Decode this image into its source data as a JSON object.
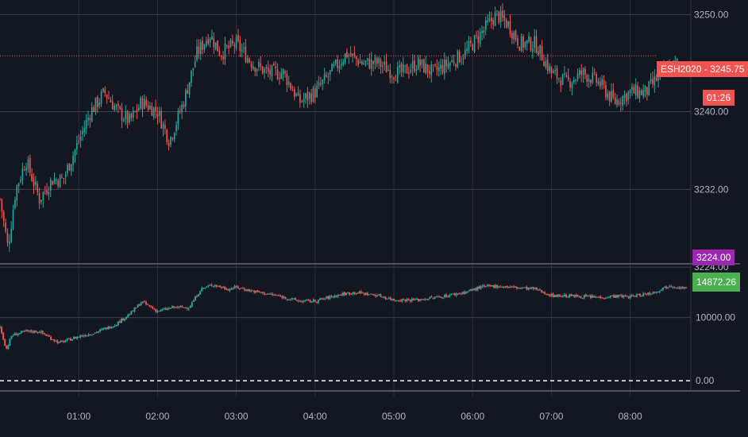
{
  "colors": {
    "background": "#131722",
    "grid": "#2a2e39",
    "gridStrong": "#3c4050",
    "axisText": "#b2b5be",
    "up": "#26a69a",
    "down": "#ef5350",
    "lastPrice": "#f05350",
    "upperTag": "#9c27b0",
    "lowerTag": "#4caf50"
  },
  "chart_data": [
    {
      "type": "candlestick",
      "symbol": "ESH2020",
      "last_price": 3245.75,
      "countdown": "01:26",
      "ylim": [
        3224.5,
        3251.5
      ],
      "y_ticks": [
        3224,
        3232,
        3240,
        3250
      ],
      "y_tick_labels": [
        "3224.00",
        "3232.00",
        "3240.00",
        "3250.00"
      ],
      "upper_tag": "3224.00",
      "x_range": [
        "00:00",
        "08:46"
      ],
      "x_tick_labels": [
        "01:00",
        "02:00",
        "03:00",
        "04:00",
        "05:00",
        "06:00",
        "07:00",
        "08:00"
      ],
      "anchors": [
        [
          0,
          3231
        ],
        [
          0.1,
          3226
        ],
        [
          0.2,
          3232
        ],
        [
          0.33,
          3235
        ],
        [
          0.5,
          3231
        ],
        [
          0.66,
          3233
        ],
        [
          0.8,
          3233
        ],
        [
          0.95,
          3236
        ],
        [
          1.15,
          3240
        ],
        [
          1.33,
          3242
        ],
        [
          1.5,
          3240
        ],
        [
          1.65,
          3239
        ],
        [
          1.8,
          3241
        ],
        [
          2.0,
          3240
        ],
        [
          2.15,
          3237
        ],
        [
          2.33,
          3241
        ],
        [
          2.5,
          3246
        ],
        [
          2.66,
          3248
        ],
        [
          2.8,
          3246
        ],
        [
          3.0,
          3247
        ],
        [
          3.2,
          3245
        ],
        [
          3.4,
          3244
        ],
        [
          3.6,
          3244
        ],
        [
          3.8,
          3241
        ],
        [
          4.0,
          3242
        ],
        [
          4.2,
          3244
        ],
        [
          4.4,
          3246
        ],
        [
          4.6,
          3245
        ],
        [
          4.8,
          3245
        ],
        [
          5.0,
          3244
        ],
        [
          5.1,
          3244
        ],
        [
          5.3,
          3245
        ],
        [
          5.5,
          3244
        ],
        [
          5.7,
          3245
        ],
        [
          5.9,
          3246
        ],
        [
          6.1,
          3248
        ],
        [
          6.3,
          3250
        ],
        [
          6.45,
          3249
        ],
        [
          6.6,
          3247
        ],
        [
          6.8,
          3247
        ],
        [
          7.0,
          3244
        ],
        [
          7.2,
          3243
        ],
        [
          7.4,
          3244
        ],
        [
          7.6,
          3243
        ],
        [
          7.8,
          3241
        ],
        [
          8.0,
          3242
        ],
        [
          8.2,
          3242
        ],
        [
          8.4,
          3244
        ],
        [
          8.6,
          3245
        ]
      ],
      "points_per_hour": 42
    },
    {
      "type": "line",
      "last_value": 14872.26,
      "last_value_label": "14872.26",
      "ylim": [
        -1100,
        18000
      ],
      "y_ticks": [
        0,
        10000
      ],
      "y_tick_labels": [
        "0.00",
        "10000.00"
      ],
      "zero_line": 0,
      "anchors": [
        [
          0,
          8500
        ],
        [
          0.08,
          5000
        ],
        [
          0.15,
          7200
        ],
        [
          0.33,
          7800
        ],
        [
          0.5,
          7800
        ],
        [
          0.75,
          6000
        ],
        [
          1.0,
          7000
        ],
        [
          1.2,
          7600
        ],
        [
          1.45,
          8800
        ],
        [
          1.65,
          10600
        ],
        [
          1.8,
          12500
        ],
        [
          2.0,
          11000
        ],
        [
          2.2,
          11600
        ],
        [
          2.4,
          11600
        ],
        [
          2.55,
          14500
        ],
        [
          2.7,
          15200
        ],
        [
          2.9,
          14500
        ],
        [
          3.0,
          14800
        ],
        [
          3.2,
          14200
        ],
        [
          3.5,
          13500
        ],
        [
          3.8,
          12600
        ],
        [
          4.0,
          12600
        ],
        [
          4.3,
          13600
        ],
        [
          4.5,
          14000
        ],
        [
          4.8,
          13500
        ],
        [
          5.0,
          12800
        ],
        [
          5.3,
          12800
        ],
        [
          5.6,
          13300
        ],
        [
          5.9,
          14000
        ],
        [
          6.1,
          14800
        ],
        [
          6.3,
          15000
        ],
        [
          6.5,
          14800
        ],
        [
          6.8,
          14500
        ],
        [
          7.0,
          13500
        ],
        [
          7.3,
          13400
        ],
        [
          7.6,
          13200
        ],
        [
          7.8,
          13400
        ],
        [
          8.0,
          13300
        ],
        [
          8.3,
          14000
        ],
        [
          8.5,
          15100
        ],
        [
          8.7,
          14600
        ]
      ],
      "points_per_hour": 48
    }
  ]
}
